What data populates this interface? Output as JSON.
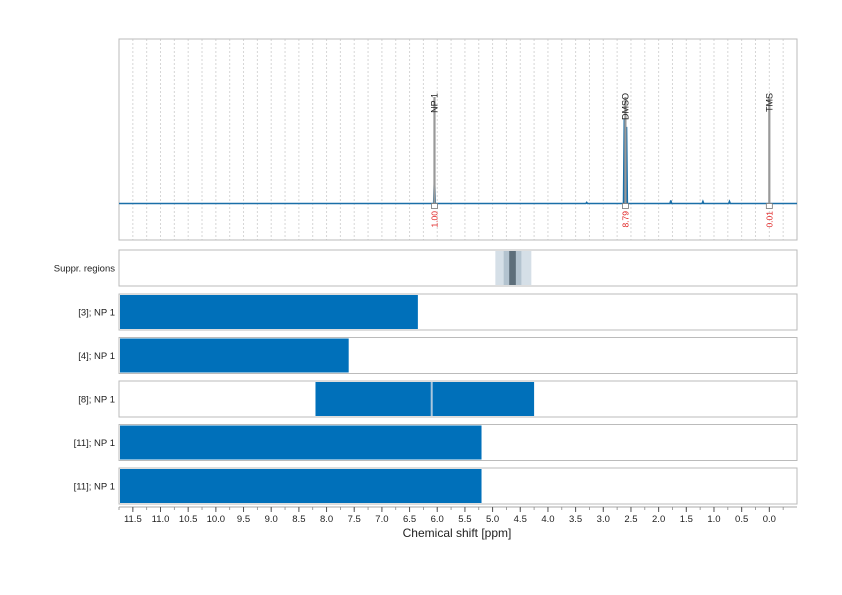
{
  "chart_data": {
    "type": "spectrum",
    "xlabel": "Chemical shift [ppm]",
    "xlim": [
      11.75,
      -0.5
    ],
    "x_ticks": [
      11.5,
      11.0,
      10.5,
      10.0,
      9.5,
      9.0,
      8.5,
      8.0,
      7.5,
      7.0,
      6.5,
      6.0,
      5.5,
      5.0,
      4.5,
      4.0,
      3.5,
      3.0,
      2.5,
      2.0,
      1.5,
      1.0,
      0.5,
      0.0
    ],
    "x_tick_labels": [
      "11.5",
      "11.0",
      "10.5",
      "10.0",
      "9.5",
      "9.0",
      "8.5",
      "8.0",
      "7.5",
      "7.0",
      "6.5",
      "6.0",
      "5.5",
      "5.0",
      "4.5",
      "4.0",
      "3.5",
      "3.0",
      "2.5",
      "2.0",
      "1.5",
      "1.0",
      "0.5",
      "0.0"
    ],
    "colors": {
      "spectrum": "#1a6fa8",
      "bar": "#0070ba",
      "integral": "#e02020",
      "marker": "#999999",
      "frame": "#bbbbbb",
      "grid": "#d6d6d6"
    },
    "spectrum": {
      "baseline_fraction": 0.0,
      "peaks": [
        {
          "ppm": 6.05,
          "height": 0.24
        },
        {
          "ppm": 2.62,
          "height": 0.82
        },
        {
          "ppm": 2.58,
          "height": 0.74
        },
        {
          "ppm": 1.78,
          "height": 0.03
        },
        {
          "ppm": 1.2,
          "height": 0.02
        },
        {
          "ppm": 0.72,
          "height": 0.02
        },
        {
          "ppm": 3.3,
          "height": 0.01
        }
      ]
    },
    "annotations": [
      {
        "label": "NP 1",
        "ppm": 6.05,
        "integral": "1.00"
      },
      {
        "label": "DMSO",
        "ppm": 2.6,
        "integral": "8.79"
      },
      {
        "label": "TMS",
        "ppm": 0.0,
        "integral": "0.01"
      }
    ],
    "suppressed_regions": {
      "label": "Suppr. regions",
      "regions": [
        {
          "from": 4.95,
          "to": 4.3,
          "shade": "#d5dfe7"
        },
        {
          "from": 4.8,
          "to": 4.48,
          "shade": "#b3c3cf"
        },
        {
          "from": 4.7,
          "to": 4.58,
          "shade": "#5d6e7a"
        }
      ]
    },
    "rows": [
      {
        "label": "[3]; NP 1",
        "from": 11.75,
        "to": 6.35,
        "divider": null
      },
      {
        "label": "[4]; NP 1",
        "from": 11.75,
        "to": 7.6,
        "divider": null
      },
      {
        "label": "[8]; NP 1",
        "from": 8.2,
        "to": 4.25,
        "divider": 6.1
      },
      {
        "label": "[11]; NP 1",
        "from": 11.75,
        "to": 5.2,
        "divider": null
      },
      {
        "label": "[11]; NP 1",
        "from": 11.75,
        "to": 5.2,
        "divider": null
      }
    ]
  }
}
